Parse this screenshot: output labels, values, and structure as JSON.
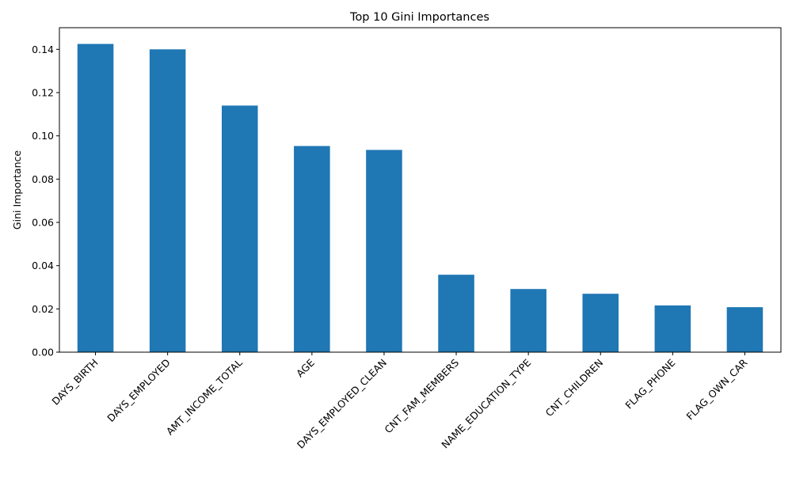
{
  "chart_data": {
    "type": "bar",
    "title": "Top 10 Gini Importances",
    "xlabel": "",
    "ylabel": "Gini Importance",
    "categories": [
      "DAYS_BIRTH",
      "DAYS_EMPLOYED",
      "AMT_INCOME_TOTAL",
      "AGE",
      "DAYS_EMPLOYED_CLEAN",
      "CNT_FAM_MEMBERS",
      "NAME_EDUCATION_TYPE",
      "CNT_CHILDREN",
      "FLAG_PHONE",
      "FLAG_OWN_CAR"
    ],
    "values": [
      0.1425,
      0.14,
      0.114,
      0.0953,
      0.0935,
      0.0358,
      0.0292,
      0.027,
      0.0216,
      0.0208
    ],
    "ylim": [
      0,
      0.15
    ],
    "yticks": [
      "0.00",
      "0.02",
      "0.04",
      "0.06",
      "0.08",
      "0.10",
      "0.12",
      "0.14"
    ],
    "grid": false,
    "legend": "none",
    "bar_color": "#1f77b4"
  }
}
